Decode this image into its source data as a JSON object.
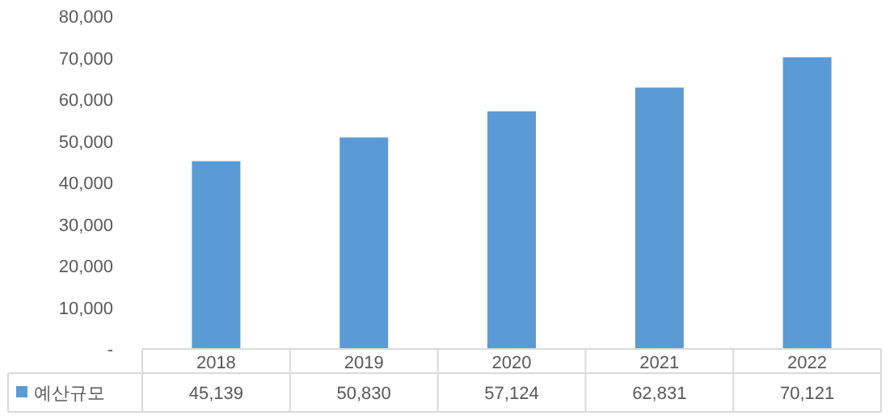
{
  "chart_data": {
    "type": "bar",
    "categories": [
      "2018",
      "2019",
      "2020",
      "2021",
      "2022"
    ],
    "series": [
      {
        "name": "예산규모",
        "color": "#5b9bd5",
        "values": [
          45139,
          50830,
          57124,
          62831,
          70121
        ]
      }
    ],
    "value_labels": [
      "45,139",
      "50,830",
      "57,124",
      "62,831",
      "70,121"
    ],
    "ylim": [
      0,
      80000
    ],
    "yticks": [
      {
        "value": 0,
        "label": "-"
      },
      {
        "value": 10000,
        "label": "10,000"
      },
      {
        "value": 20000,
        "label": "20,000"
      },
      {
        "value": 30000,
        "label": "30,000"
      },
      {
        "value": 40000,
        "label": "40,000"
      },
      {
        "value": 50000,
        "label": "50,000"
      },
      {
        "value": 60000,
        "label": "60,000"
      },
      {
        "value": 70000,
        "label": "70,000"
      },
      {
        "value": 80000,
        "label": "80,000"
      }
    ],
    "grid": false,
    "legend": "bottom"
  }
}
